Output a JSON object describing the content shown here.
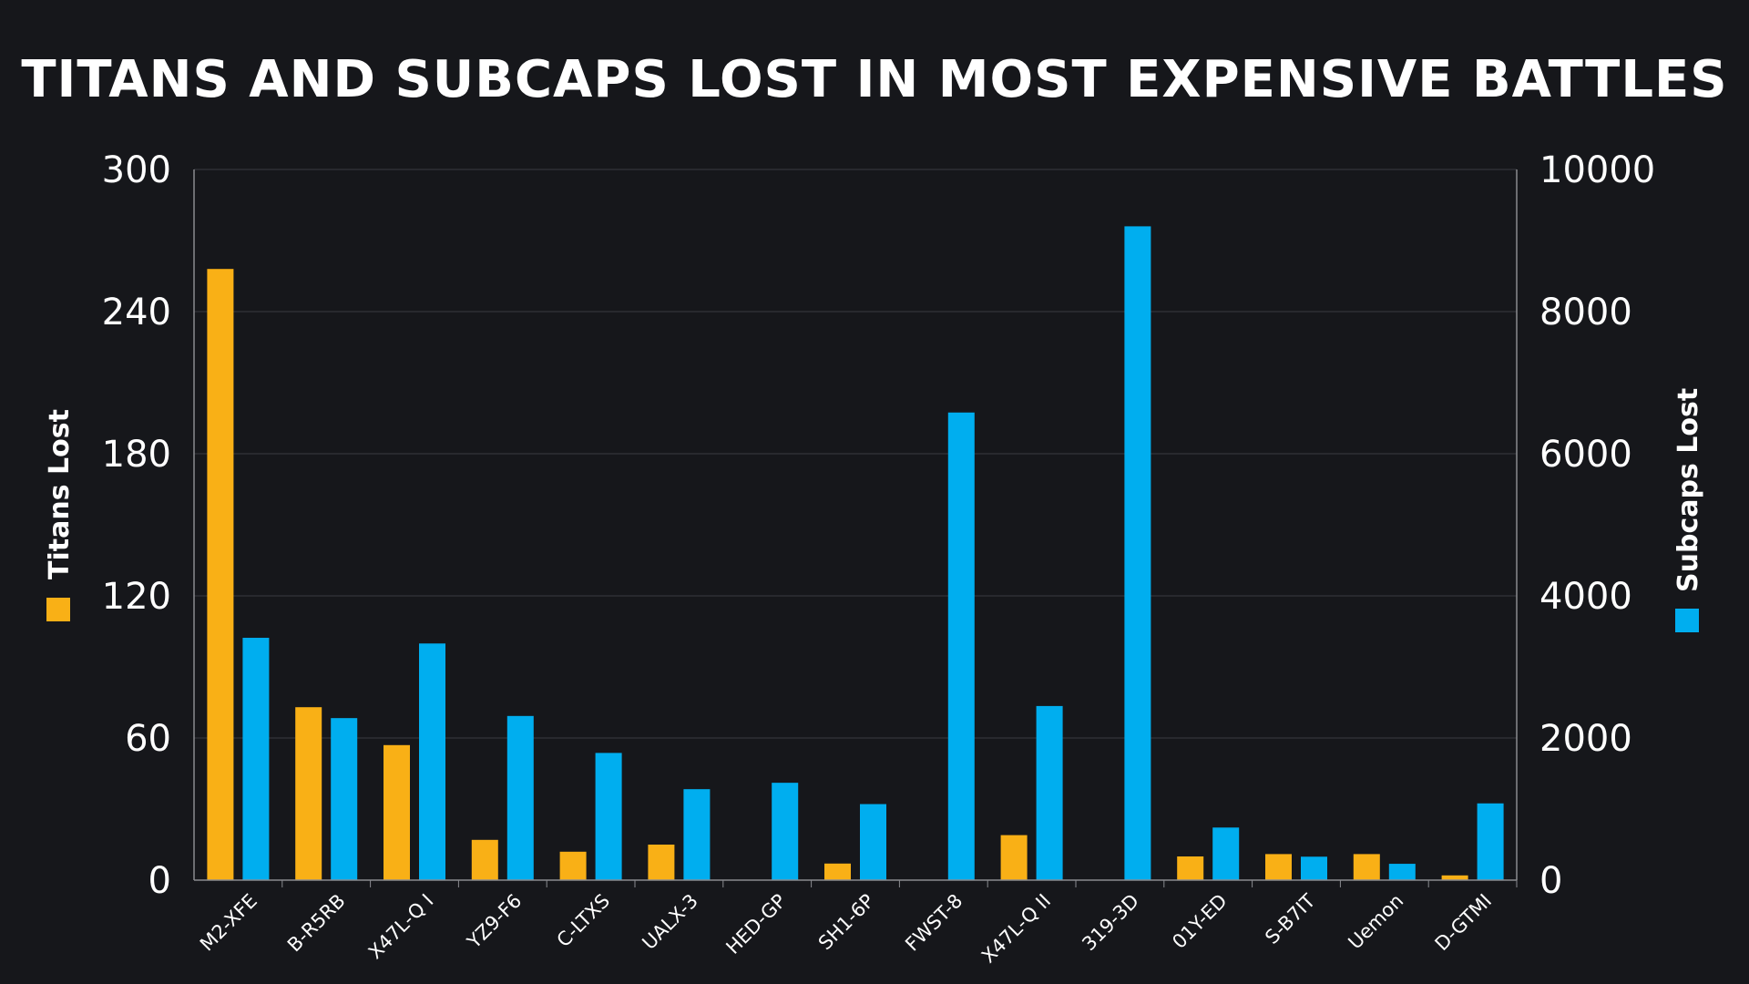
{
  "chart_data": {
    "type": "bar",
    "title": "TITANS AND SUBCAPS LOST IN MOST EXPENSIVE BATTLES",
    "categories": [
      "M2-XFE",
      "B-R5RB",
      "X47L-Q I",
      "YZ9-F6",
      "C-LTXS",
      "UALX-3",
      "HED-GP",
      "SH1-6P",
      "FWST-8",
      "X47L-Q II",
      "319-3D",
      "01Y-ED",
      "S-B7IT",
      "Uemon",
      "D-GTMI"
    ],
    "series": [
      {
        "name": "Titans Lost",
        "axis": "left",
        "color": "#f9b016",
        "values": [
          258,
          73,
          57,
          17,
          12,
          15,
          0,
          7,
          0,
          19,
          0,
          10,
          11,
          11,
          2
        ]
      },
      {
        "name": "Subcaps Lost",
        "axis": "right",
        "color": "#00aeef",
        "values": [
          3410,
          2280,
          3330,
          2310,
          1790,
          1280,
          1370,
          1070,
          6580,
          2450,
          9200,
          740,
          330,
          230,
          1080
        ]
      }
    ],
    "ylabel": "Titans Lost",
    "ylabel_right": "Subcaps Lost",
    "ylim": [
      0,
      300
    ],
    "ylim_right": [
      0,
      10000
    ],
    "yticks": [
      "0",
      "60",
      "120",
      "180",
      "240",
      "300"
    ],
    "yticks_right": [
      "0",
      "2000",
      "4000",
      "6000",
      "8000",
      "10000"
    ],
    "grid": true,
    "legend": "axis-labels"
  }
}
